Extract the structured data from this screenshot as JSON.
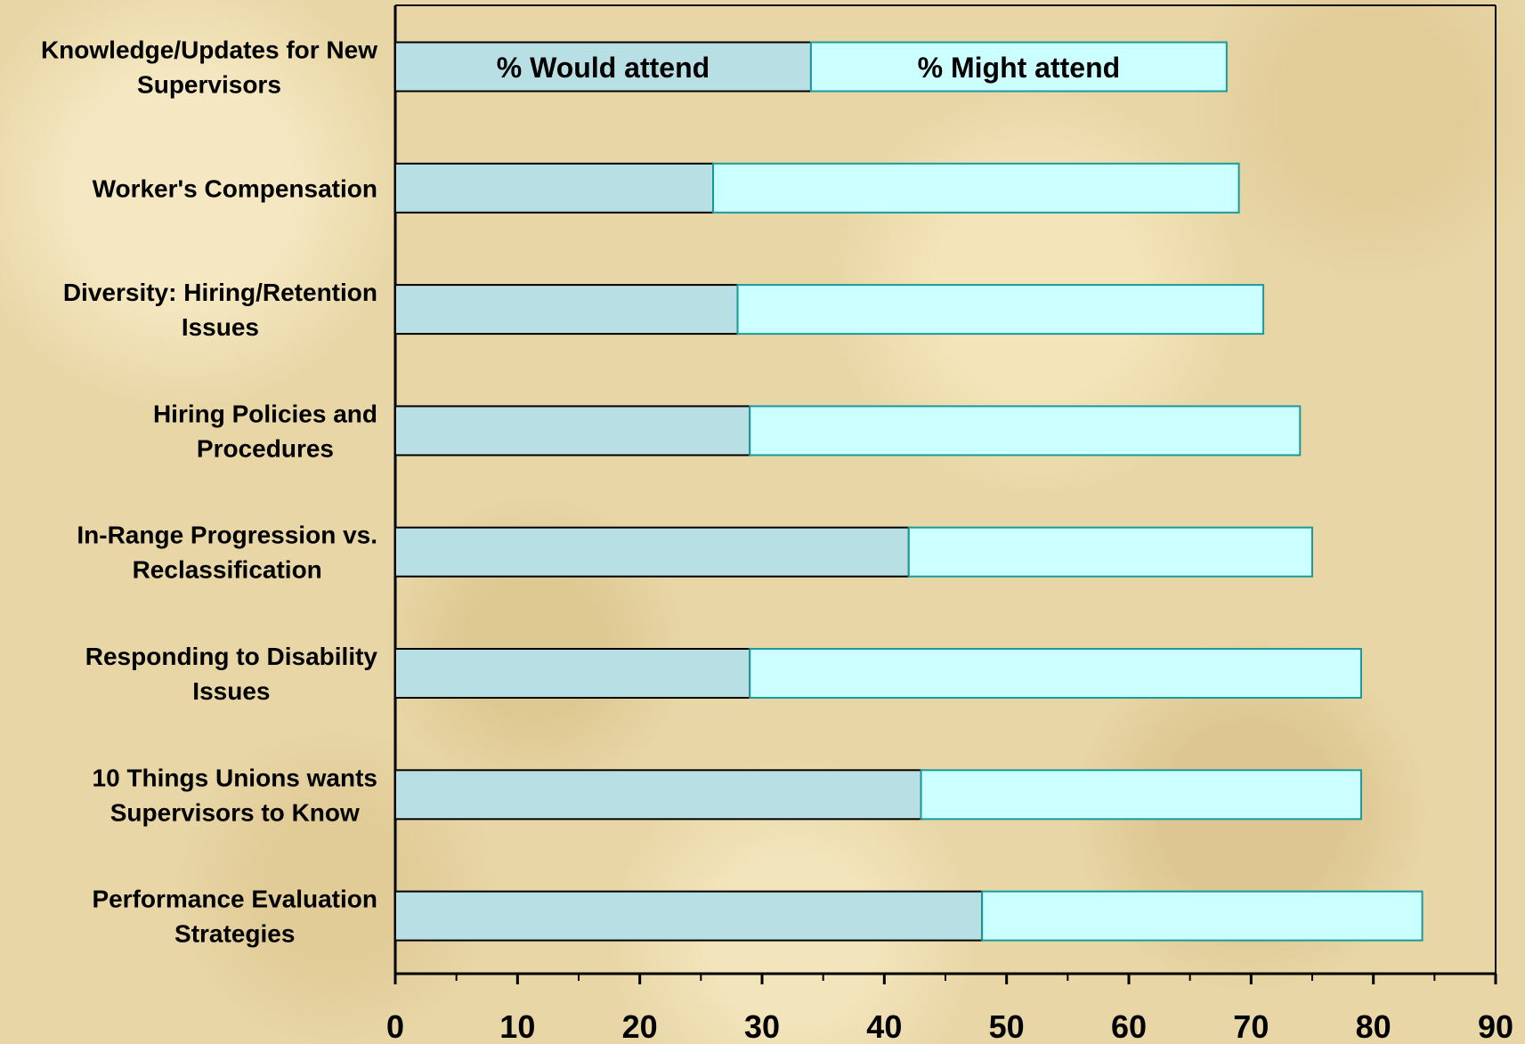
{
  "chart_data": {
    "type": "bar",
    "orientation": "horizontal",
    "stacked": true,
    "categories": [
      [
        "Knowledge/Updates for New",
        "Supervisors"
      ],
      [
        "Worker's Compensation"
      ],
      [
        "Diversity: Hiring/Retention",
        "Issues"
      ],
      [
        "Hiring Policies and",
        "Procedures"
      ],
      [
        "In-Range Progression vs.",
        "Reclassification"
      ],
      [
        "Responding to Disability",
        "Issues"
      ],
      [
        "10 Things Unions wants",
        "Supervisors to Know"
      ],
      [
        "Performance Evaluation",
        "Strategies"
      ]
    ],
    "series": [
      {
        "name": "% Would attend",
        "color": "#b8dfe3",
        "values": [
          34,
          26,
          28,
          29,
          42,
          29,
          43,
          48
        ]
      },
      {
        "name": "% Might attend",
        "color": "#ccffff",
        "values": [
          34,
          43,
          43,
          45,
          33,
          50,
          36,
          36
        ]
      }
    ],
    "xlim": [
      0,
      90
    ],
    "xticks": [
      "0",
      "10",
      "20",
      "30",
      "40",
      "50",
      "60",
      "70",
      "80",
      "90"
    ],
    "legend": "inside-first-bar"
  }
}
